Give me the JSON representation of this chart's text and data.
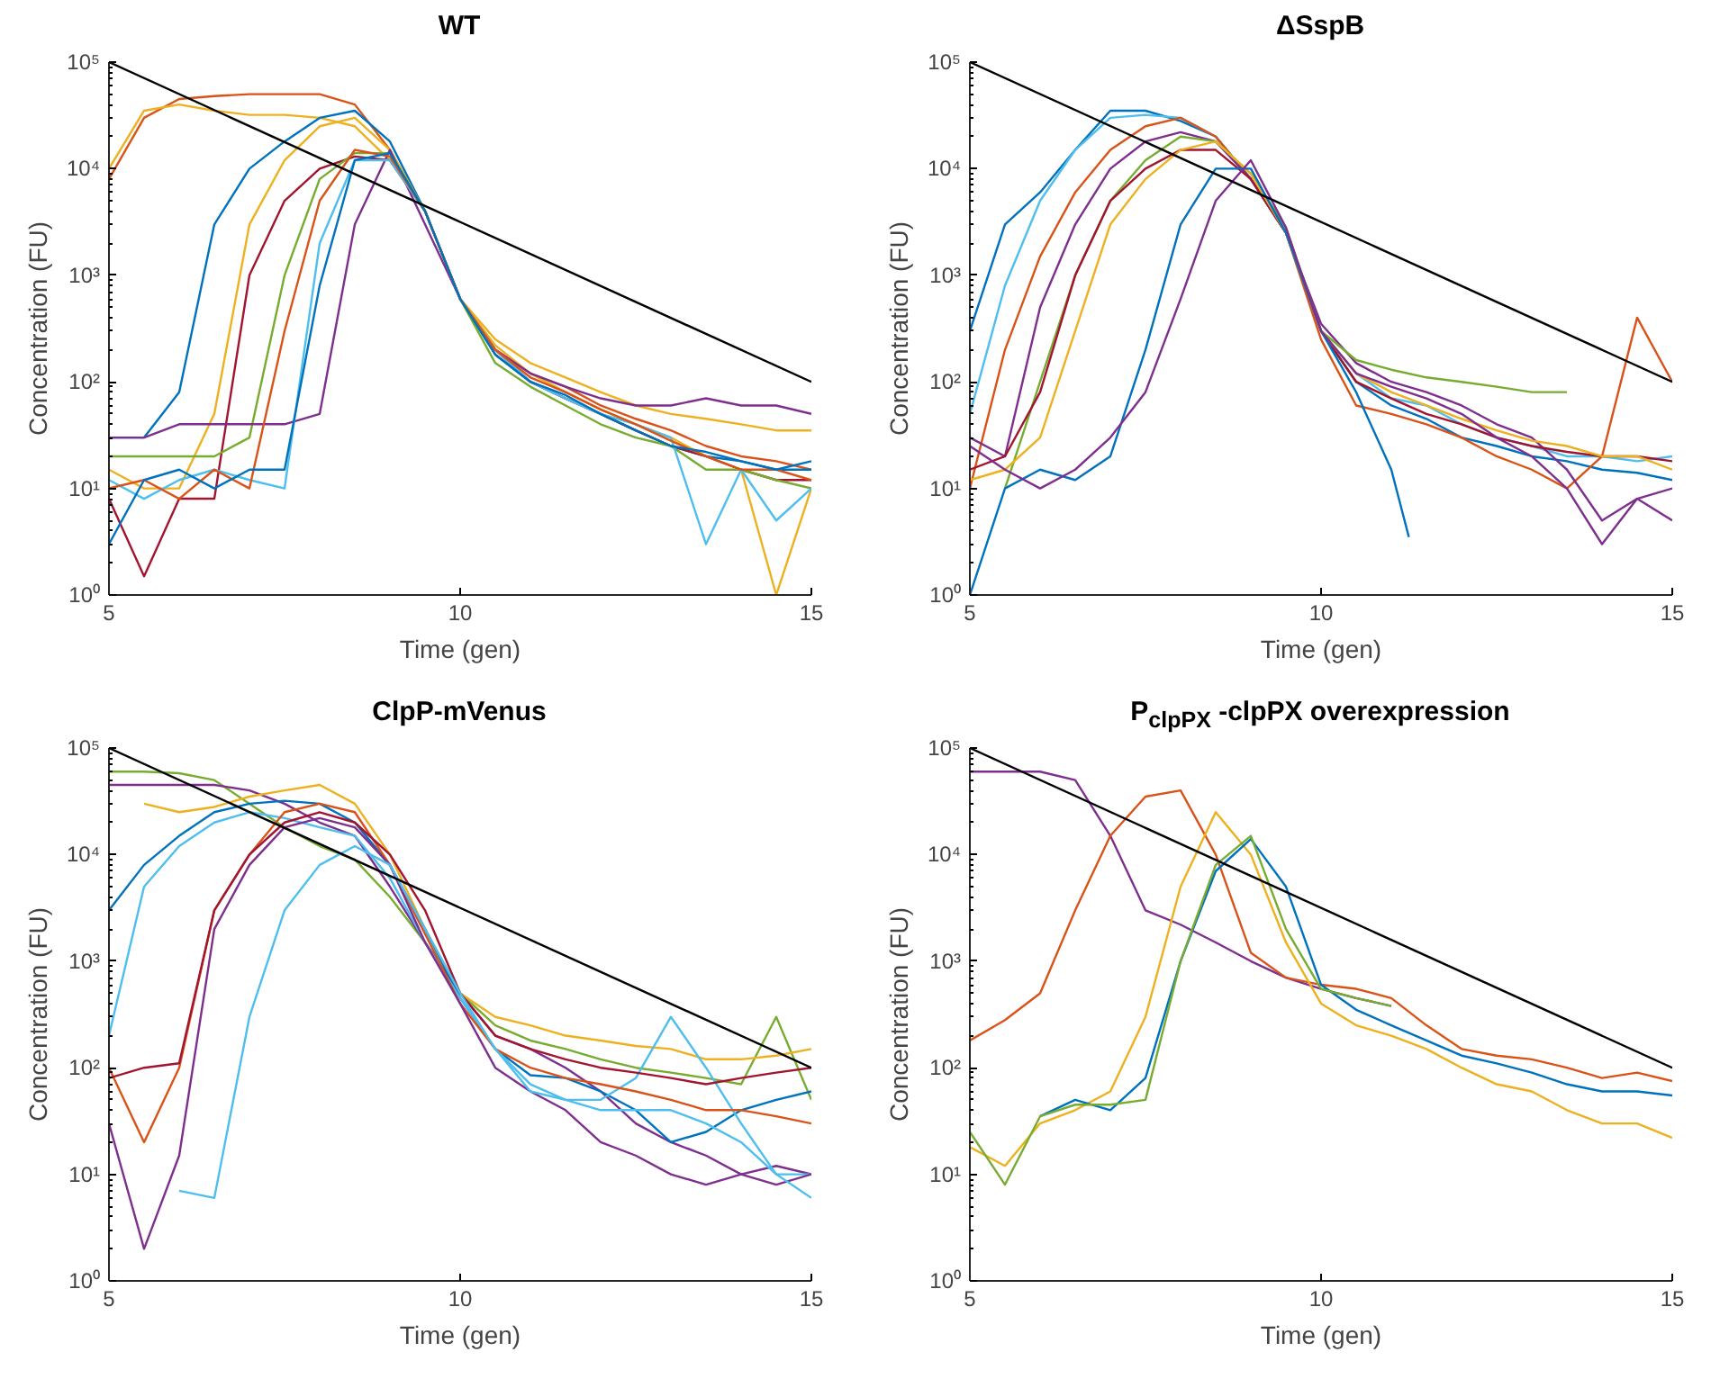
{
  "chart_data": [
    {
      "type": "line",
      "title": "WT",
      "xlabel": "Time (gen)",
      "ylabel": "Concentration (FU)",
      "log": "y",
      "x": [
        5,
        5.5,
        6,
        6.5,
        7,
        7.5,
        8,
        8.5,
        9,
        9.5,
        10,
        10.5,
        11,
        11.5,
        12,
        12.5,
        13,
        13.5,
        14,
        14.5,
        15
      ],
      "xlim": [
        5,
        15
      ],
      "xticks": [
        5,
        10,
        15
      ],
      "ylim": [
        1,
        100000
      ],
      "yticks": [
        {
          "value": 1,
          "label": "10⁰"
        },
        {
          "value": 10,
          "label": "10¹"
        },
        {
          "value": 100,
          "label": "10²"
        },
        {
          "value": 1000,
          "label": "10³"
        },
        {
          "value": 10000,
          "label": "10⁴"
        },
        {
          "value": 100000,
          "label": "10⁵"
        }
      ],
      "series": [
        {
          "color": "#d95319",
          "values": [
            8000,
            30000,
            45000,
            48000,
            50000,
            50000,
            50000,
            40000,
            15000,
            4000,
            600,
            200,
            120,
            90,
            60,
            45,
            35,
            25,
            20,
            18,
            15
          ]
        },
        {
          "color": "#edb120",
          "values": [
            10000,
            35000,
            40000,
            35000,
            32000,
            32000,
            30000,
            25000,
            12000,
            4000,
            600,
            250,
            150,
            110,
            80,
            60,
            50,
            45,
            40,
            35,
            35
          ]
        },
        {
          "color": "#0072bd",
          "values": [
            30,
            30,
            80,
            3000,
            10000,
            18000,
            30000,
            35000,
            18000,
            4000,
            600,
            180,
            100,
            70,
            50,
            35,
            25,
            20,
            18,
            15,
            15
          ]
        },
        {
          "color": "#edb120",
          "values": [
            15,
            10,
            10,
            50,
            3000,
            12000,
            25000,
            30000,
            15000,
            4000,
            600,
            220,
            120,
            80,
            55,
            40,
            30,
            20,
            15,
            1,
            10
          ]
        },
        {
          "color": "#a2142f",
          "values": [
            8,
            1.5,
            8,
            8,
            1000,
            5000,
            10000,
            13000,
            12000,
            4000,
            600,
            200,
            100,
            70,
            50,
            35,
            25,
            20,
            15,
            12,
            12
          ]
        },
        {
          "color": "#77ac30",
          "values": [
            20,
            20,
            20,
            20,
            30,
            1000,
            8000,
            14000,
            14000,
            4000,
            600,
            150,
            90,
            60,
            40,
            30,
            25,
            15,
            15,
            12,
            10
          ]
        },
        {
          "color": "#7e2f8e",
          "values": [
            30,
            30,
            40,
            40,
            40,
            40,
            50,
            3000,
            15000,
            3000,
            600,
            200,
            120,
            90,
            70,
            60,
            60,
            70,
            60,
            60,
            50
          ]
        },
        {
          "color": "#4dbeee",
          "values": [
            12,
            8,
            12,
            15,
            12,
            10,
            2000,
            12000,
            12000,
            4000,
            600,
            200,
            100,
            70,
            50,
            40,
            30,
            3,
            15,
            5,
            10
          ]
        },
        {
          "color": "#d95319",
          "values": [
            10,
            12,
            8,
            15,
            10,
            300,
            5000,
            15000,
            13000,
            4000,
            600,
            200,
            110,
            80,
            55,
            40,
            28,
            20,
            15,
            15,
            12
          ]
        },
        {
          "color": "#0072bd",
          "values": [
            3,
            12,
            15,
            10,
            15,
            15,
            800,
            12000,
            14000,
            4000,
            600,
            180,
            100,
            75,
            50,
            35,
            25,
            22,
            18,
            15,
            18
          ]
        },
        {
          "color": "#000000",
          "x": [
            5,
            15
          ],
          "values": [
            100000,
            100
          ]
        }
      ]
    },
    {
      "type": "line",
      "title": "ΔSspB",
      "xlabel": "Time (gen)",
      "ylabel": "Concentration (FU)",
      "log": "y",
      "x": [
        5,
        5.5,
        6,
        6.5,
        7,
        7.5,
        8,
        8.5,
        9,
        9.5,
        10,
        10.5,
        11,
        11.5,
        12,
        12.5,
        13,
        13.5,
        14,
        14.5,
        15
      ],
      "xlim": [
        5,
        15
      ],
      "xticks": [
        5,
        10,
        15
      ],
      "ylim": [
        1,
        100000
      ],
      "yticks": [
        {
          "value": 1,
          "label": "10⁰"
        },
        {
          "value": 10,
          "label": "10¹"
        },
        {
          "value": 100,
          "label": "10²"
        },
        {
          "value": 1000,
          "label": "10³"
        },
        {
          "value": 10000,
          "label": "10⁴"
        },
        {
          "value": 100000,
          "label": "10⁵"
        }
      ],
      "series": [
        {
          "color": "#0072bd",
          "values": [
            300,
            3000,
            6000,
            15000,
            35000,
            35000,
            28000,
            20000,
            8000,
            2500,
            300,
            100,
            60,
            45,
            30,
            25,
            20,
            18,
            15,
            14,
            12
          ]
        },
        {
          "color": "#4dbeee",
          "values": [
            50,
            800,
            5000,
            15000,
            30000,
            32000,
            30000,
            20000,
            8000,
            2500,
            300,
            120,
            70,
            60,
            40,
            30,
            25,
            20,
            20,
            18,
            20
          ]
        },
        {
          "color": "#d95319",
          "values": [
            10,
            200,
            1500,
            6000,
            15000,
            25000,
            30000,
            20000,
            8000,
            2500,
            250,
            60,
            50,
            40,
            30,
            20,
            15,
            10,
            20,
            400,
            100
          ]
        },
        {
          "color": "#7e2f8e",
          "values": [
            30,
            20,
            500,
            3000,
            10000,
            18000,
            22000,
            18000,
            8000,
            2500,
            350,
            150,
            100,
            80,
            60,
            40,
            30,
            15,
            5,
            8,
            10
          ]
        },
        {
          "color": "#77ac30",
          "values": [
            null,
            10,
            100,
            1000,
            5000,
            12000,
            20000,
            18000,
            9000,
            2800,
            300,
            160,
            130,
            110,
            100,
            90,
            80,
            80,
            null,
            null,
            null
          ]
        },
        {
          "color": "#a2142f",
          "values": [
            15,
            20,
            80,
            1000,
            5000,
            10000,
            15000,
            15000,
            8000,
            2500,
            300,
            100,
            70,
            50,
            40,
            30,
            25,
            22,
            20,
            20,
            18
          ]
        },
        {
          "color": "#edb120",
          "values": [
            12,
            15,
            30,
            300,
            3000,
            8000,
            15000,
            18000,
            9000,
            2500,
            300,
            120,
            80,
            60,
            45,
            35,
            28,
            25,
            20,
            20,
            15
          ]
        },
        {
          "color": "#0072bd",
          "x": [
            5,
            5.5,
            6,
            6.5,
            7,
            7.5,
            8,
            8.5,
            9,
            9.5,
            10,
            10.5,
            11,
            11.25
          ],
          "values": [
            1,
            10,
            15,
            12,
            20,
            200,
            3000,
            10000,
            10000,
            2500,
            300,
            80,
            15,
            3.5
          ]
        },
        {
          "color": "#7e2f8e",
          "values": [
            25,
            15,
            10,
            15,
            30,
            80,
            600,
            5000,
            12000,
            2800,
            300,
            120,
            90,
            70,
            50,
            30,
            20,
            10,
            3,
            8,
            5
          ]
        },
        {
          "color": "#000000",
          "x": [
            5,
            15
          ],
          "values": [
            100000,
            100
          ]
        }
      ]
    },
    {
      "type": "line",
      "title": "ClpP-mVenus",
      "xlabel": "Time (gen)",
      "ylabel": "Concentration (FU)",
      "log": "y",
      "x": [
        5,
        5.5,
        6,
        6.5,
        7,
        7.5,
        8,
        8.5,
        9,
        9.5,
        10,
        10.5,
        11,
        11.5,
        12,
        12.5,
        13,
        13.5,
        14,
        14.5,
        15
      ],
      "xlim": [
        5,
        15
      ],
      "xticks": [
        5,
        10,
        15
      ],
      "ylim": [
        1,
        100000
      ],
      "yticks": [
        {
          "value": 1,
          "label": "10⁰"
        },
        {
          "value": 10,
          "label": "10¹"
        },
        {
          "value": 100,
          "label": "10²"
        },
        {
          "value": 1000,
          "label": "10³"
        },
        {
          "value": 10000,
          "label": "10⁴"
        },
        {
          "value": 100000,
          "label": "10⁵"
        }
      ],
      "series": [
        {
          "color": "#77ac30",
          "values": [
            60000,
            60000,
            58000,
            50000,
            30000,
            18000,
            12000,
            9000,
            4000,
            1500,
            500,
            250,
            180,
            150,
            120,
            100,
            90,
            80,
            70,
            300,
            50
          ]
        },
        {
          "color": "#7e2f8e",
          "values": [
            45000,
            45000,
            45000,
            45000,
            40000,
            30000,
            20000,
            15000,
            5000,
            1500,
            500,
            200,
            150,
            100,
            60,
            30,
            20,
            15,
            10,
            12,
            10
          ]
        },
        {
          "color": "#edb120",
          "values": [
            null,
            30000,
            25000,
            28000,
            35000,
            40000,
            45000,
            30000,
            10000,
            2000,
            500,
            300,
            250,
            200,
            180,
            160,
            150,
            120,
            120,
            130,
            150
          ]
        },
        {
          "color": "#0072bd",
          "values": [
            3000,
            8000,
            15000,
            25000,
            30000,
            32000,
            30000,
            20000,
            8000,
            2000,
            450,
            150,
            85,
            80,
            60,
            40,
            20,
            25,
            40,
            50,
            60
          ]
        },
        {
          "color": "#4dbeee",
          "values": [
            200,
            5000,
            12000,
            20000,
            25000,
            22000,
            18000,
            15000,
            6000,
            1500,
            450,
            150,
            70,
            50,
            50,
            80,
            300,
            100,
            30,
            10,
            10
          ]
        },
        {
          "color": "#d95319",
          "values": [
            100,
            20,
            100,
            3000,
            10000,
            25000,
            30000,
            25000,
            8000,
            1800,
            400,
            150,
            100,
            80,
            70,
            60,
            50,
            40,
            40,
            35,
            30
          ]
        },
        {
          "color": "#a2142f",
          "values": [
            80,
            100,
            110,
            3000,
            10000,
            20000,
            25000,
            20000,
            10000,
            3000,
            500,
            200,
            150,
            120,
            100,
            90,
            80,
            70,
            80,
            90,
            100
          ]
        },
        {
          "color": "#7e2f8e",
          "values": [
            30,
            2,
            15,
            2000,
            8000,
            18000,
            22000,
            18000,
            8000,
            1500,
            400,
            100,
            60,
            40,
            20,
            15,
            10,
            8,
            10,
            8,
            10
          ]
        },
        {
          "color": "#4dbeee",
          "values": [
            null,
            null,
            7,
            6,
            300,
            3000,
            8000,
            12000,
            8000,
            2000,
            500,
            150,
            60,
            50,
            40,
            40,
            40,
            30,
            20,
            10,
            6
          ]
        },
        {
          "color": "#000000",
          "x": [
            5,
            15
          ],
          "values": [
            100000,
            100
          ]
        }
      ]
    },
    {
      "type": "line",
      "title": "P$_{clpPX}$ -clpPX overexpression",
      "xlabel": "Time (gen)",
      "ylabel": "Concentration (FU)",
      "log": "y",
      "x": [
        5,
        5.5,
        6,
        6.5,
        7,
        7.5,
        8,
        8.5,
        9,
        9.5,
        10,
        10.5,
        11,
        11.5,
        12,
        12.5,
        13,
        13.5,
        14,
        14.5,
        15
      ],
      "xlim": [
        5,
        15
      ],
      "xticks": [
        5,
        10,
        15
      ],
      "ylim": [
        1,
        100000
      ],
      "yticks": [
        {
          "value": 1,
          "label": "10⁰"
        },
        {
          "value": 10,
          "label": "10¹"
        },
        {
          "value": 100,
          "label": "10²"
        },
        {
          "value": 1000,
          "label": "10³"
        },
        {
          "value": 10000,
          "label": "10⁴"
        },
        {
          "value": 100000,
          "label": "10⁵"
        }
      ],
      "series": [
        {
          "color": "#7e2f8e",
          "values": [
            60000,
            60000,
            60000,
            50000,
            15000,
            3000,
            2200,
            1500,
            1000,
            700,
            550,
            450,
            380,
            null,
            null,
            null,
            null,
            null,
            null,
            null,
            null
          ]
        },
        {
          "color": "#d95319",
          "values": [
            180,
            280,
            500,
            3000,
            15000,
            35000,
            40000,
            10000,
            1200,
            700,
            600,
            550,
            450,
            250,
            150,
            130,
            120,
            100,
            80,
            90,
            75
          ]
        },
        {
          "color": "#edb120",
          "values": [
            18,
            12,
            30,
            40,
            60,
            300,
            5000,
            25000,
            10000,
            1500,
            400,
            250,
            200,
            150,
            100,
            70,
            60,
            40,
            30,
            30,
            22
          ]
        },
        {
          "color": "#0072bd",
          "values": [
            null,
            null,
            35,
            50,
            40,
            80,
            1000,
            7000,
            14000,
            5000,
            600,
            350,
            250,
            180,
            130,
            110,
            90,
            70,
            60,
            60,
            55
          ]
        },
        {
          "color": "#77ac30",
          "values": [
            25,
            8,
            35,
            45,
            45,
            50,
            1000,
            8000,
            15000,
            2000,
            550,
            450,
            380,
            null,
            null,
            null,
            null,
            null,
            null,
            null,
            null
          ]
        },
        {
          "color": "#000000",
          "x": [
            5,
            15
          ],
          "values": [
            100000,
            100
          ]
        }
      ]
    }
  ]
}
